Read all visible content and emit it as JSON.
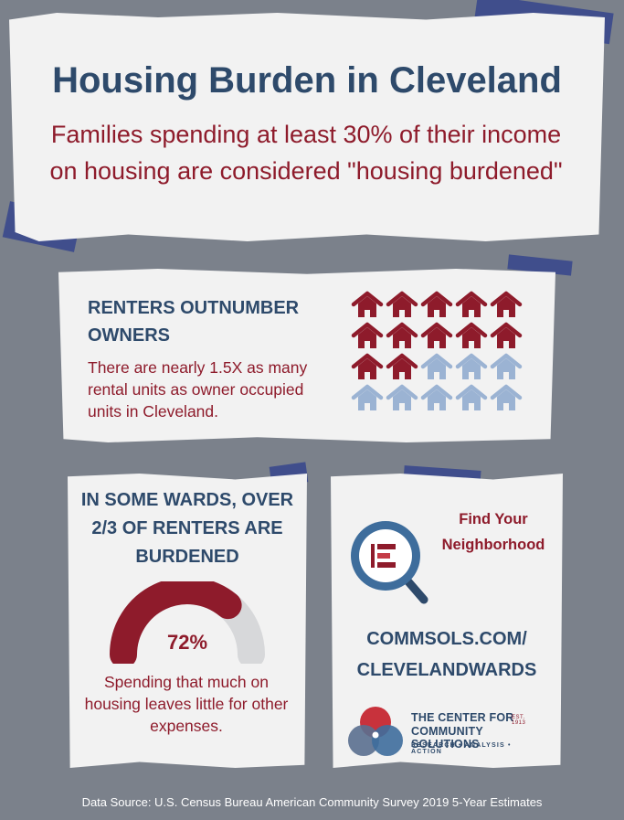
{
  "header": {
    "title": "Housing Burden in Cleveland",
    "subtitle": "Families spending at least 30% of their income on housing are considered \"housing burdened\""
  },
  "renters": {
    "heading": "RENTERS OUTNUMBER OWNERS",
    "text": "There are nearly 1.5X as many rental  units as owner occupied units in Cleveland.",
    "icons": {
      "rental_count": 12,
      "owner_count": 8,
      "rental_color": "#8e1b2b",
      "owner_color": "#9bb3d3",
      "icon": "house-icon"
    }
  },
  "wards": {
    "heading": "IN SOME WARDS, OVER 2/3 OF RENTERS ARE BURDENED",
    "percent_label": "72%",
    "percent_value": 72,
    "text": "Spending that much on housing leaves little for other expenses.",
    "gauge_color": "#8e1b2b",
    "gauge_track_color": "#d7d8da"
  },
  "link_card": {
    "find_text": "Find Your Neighborhood",
    "url": "COMMSOLS.COM/ CLEVELANDWARDS",
    "logo": {
      "line1": "THE CENTER FOR",
      "line2": "COMMUNITY SOLUTIONS",
      "tagline": "RESEARCH • ANALYSIS • ACTION",
      "est": "EST. 1913"
    }
  },
  "source": "Data Source: U.S. Census Bureau American Community Survey 2019 5-Year Estimates",
  "colors": {
    "background": "#7b818b",
    "navy": "#2e4a6b",
    "maroon": "#8e1b2b",
    "tape": "#3b4a8c"
  }
}
